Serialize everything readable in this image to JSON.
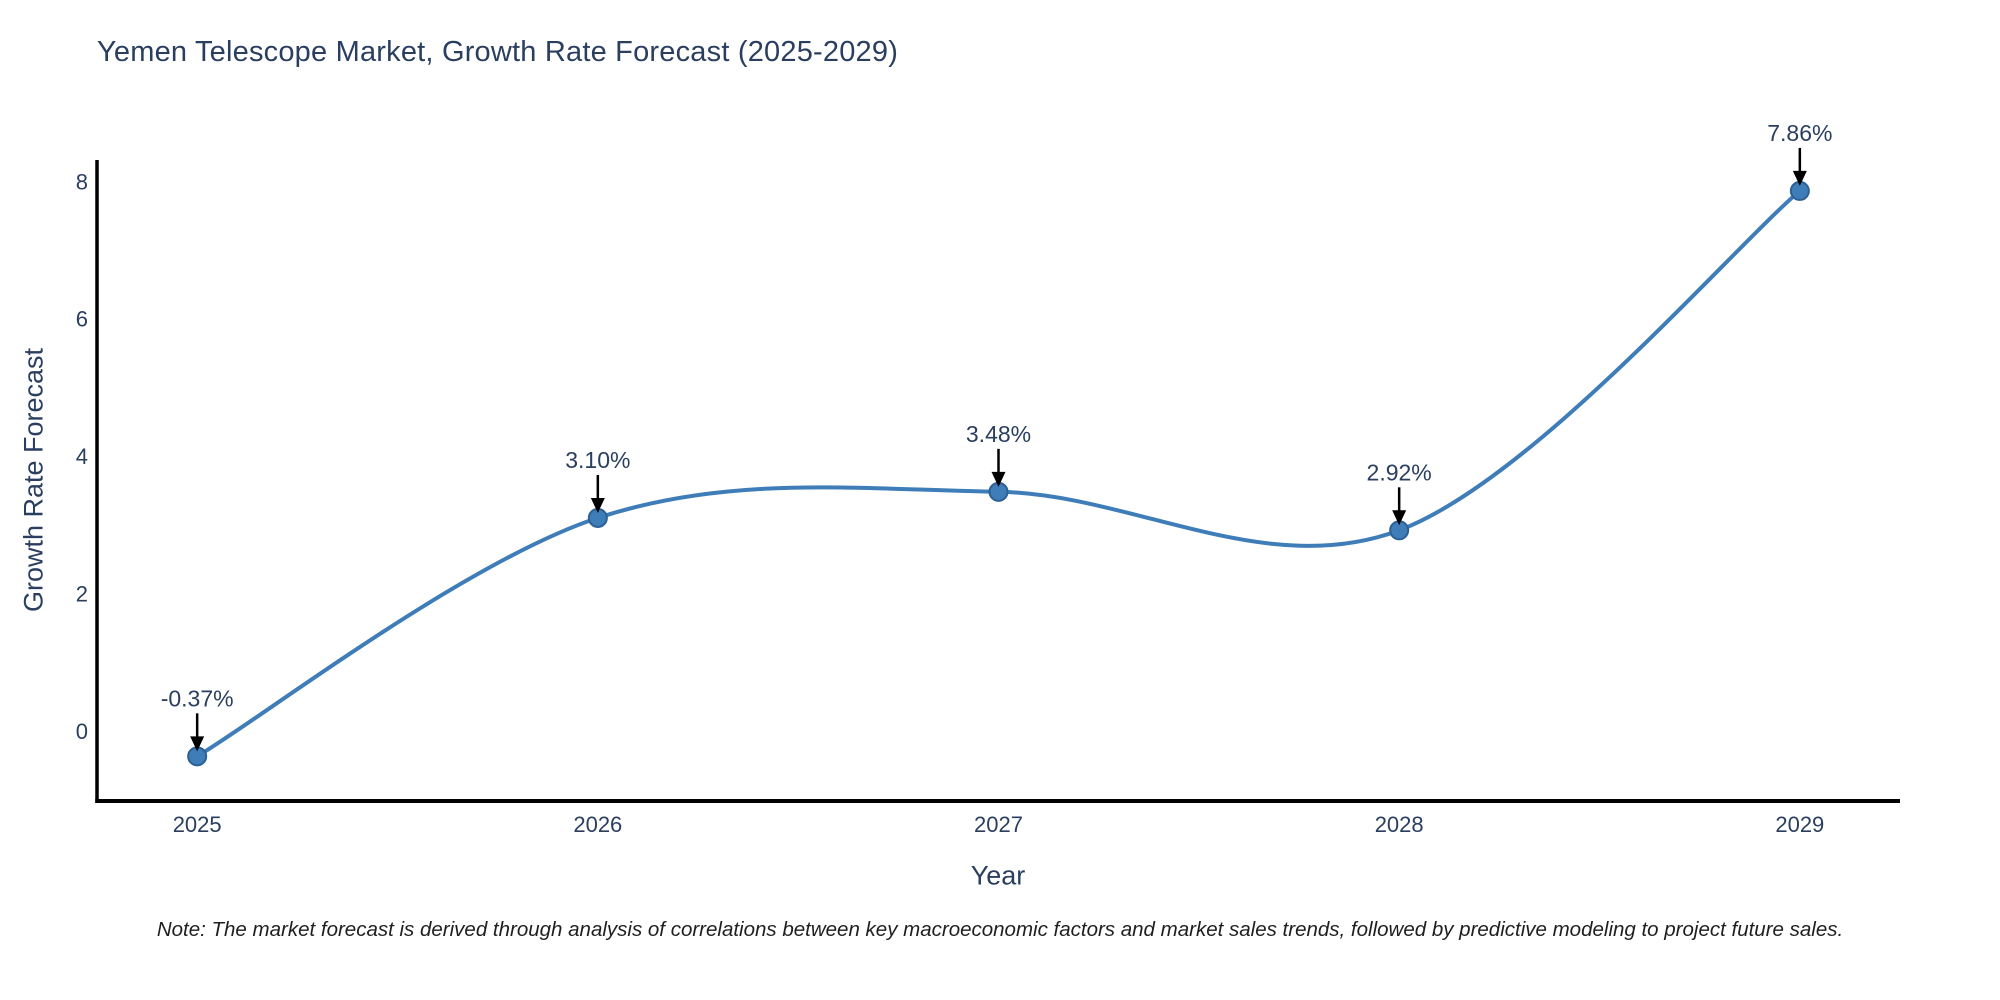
{
  "chart_data": {
    "type": "line",
    "title": "Yemen Telescope Market, Growth Rate Forecast (2025-2029)",
    "xlabel": "Year",
    "ylabel": "Growth Rate Forecast",
    "x": [
      2025,
      2026,
      2027,
      2028,
      2029
    ],
    "series": [
      {
        "name": "Growth Rate Forecast",
        "values": [
          -0.37,
          3.1,
          3.48,
          2.92,
          7.86
        ],
        "point_labels": [
          "-0.37%",
          "3.10%",
          "3.48%",
          "2.92%",
          "7.86%"
        ]
      }
    ],
    "xticks": [
      "2025",
      "2026",
      "2027",
      "2028",
      "2029"
    ],
    "yticks": [
      0,
      2,
      4,
      6,
      8
    ],
    "xlim": [
      2024.75,
      2029.25
    ],
    "ylim": [
      -1.02,
      8.31
    ],
    "grid": false,
    "legend_position": "none",
    "line_shape": "spline",
    "colors": {
      "line": "#3f7db8",
      "marker_fill": "#3f7db8",
      "marker_edge": "#2b6095",
      "axis": "#000000",
      "arrow": "#000000",
      "text": "#2a3f5f"
    },
    "footnote": "Note: The market forecast is derived through analysis of correlations between key macroeconomic factors and market sales trends, followed by predictive modeling to project future sales."
  }
}
